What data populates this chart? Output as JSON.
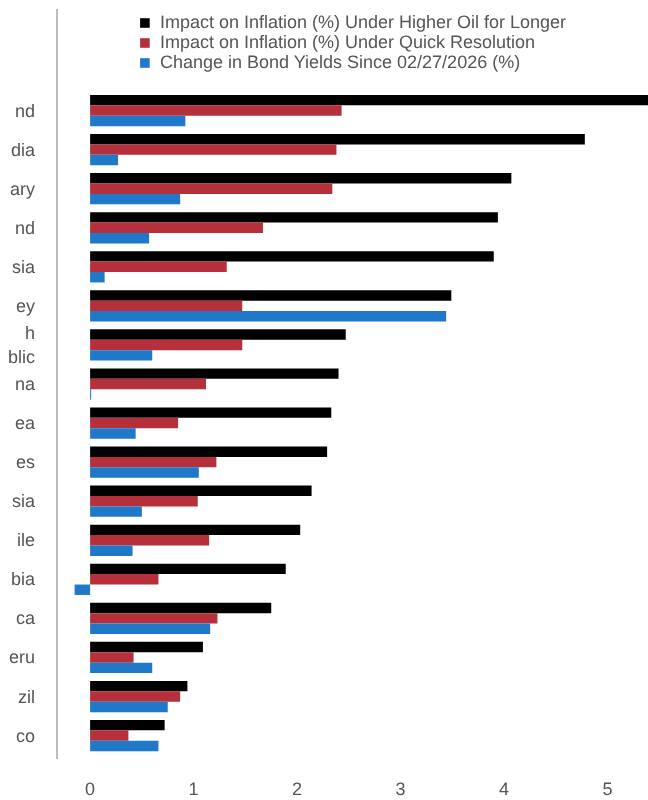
{
  "chart_data": {
    "type": "bar",
    "orientation": "horizontal",
    "categories": [
      "nd",
      "dia",
      "ary",
      "nd",
      "sia",
      "ey",
      "h\nblic",
      "na",
      "ea",
      "es",
      "sia",
      "ile",
      "bia",
      "ca",
      "eru",
      "zil",
      "co"
    ],
    "series": [
      {
        "name": "Impact on Inflation (%) Under Higher Oil for Longer",
        "color": "#000000",
        "values": [
          5.4,
          4.78,
          4.07,
          3.94,
          3.9,
          3.49,
          2.47,
          2.4,
          2.33,
          2.29,
          2.14,
          2.03,
          1.89,
          1.75,
          1.09,
          0.94,
          0.72
        ]
      },
      {
        "name": "Impact on Inflation (%) Under Quick Resolution",
        "color": "#b5303a",
        "values": [
          2.43,
          2.38,
          2.34,
          1.67,
          1.32,
          1.47,
          1.47,
          1.12,
          0.85,
          1.22,
          1.04,
          1.15,
          0.66,
          1.23,
          0.42,
          0.87,
          0.37
        ]
      },
      {
        "name": "Change in Bond Yields Since 02/27/2026 (%)",
        "color": "#1f78c8",
        "values": [
          0.92,
          0.27,
          0.87,
          0.57,
          0.14,
          3.44,
          0.6,
          0.01,
          0.44,
          1.05,
          0.5,
          0.41,
          -0.15,
          1.16,
          0.6,
          0.75,
          0.66
        ]
      }
    ],
    "xlim": [
      -0.32,
      5.4
    ],
    "xticks": [
      0,
      1,
      2,
      3,
      4,
      5
    ],
    "grid": false,
    "legend": "top"
  }
}
